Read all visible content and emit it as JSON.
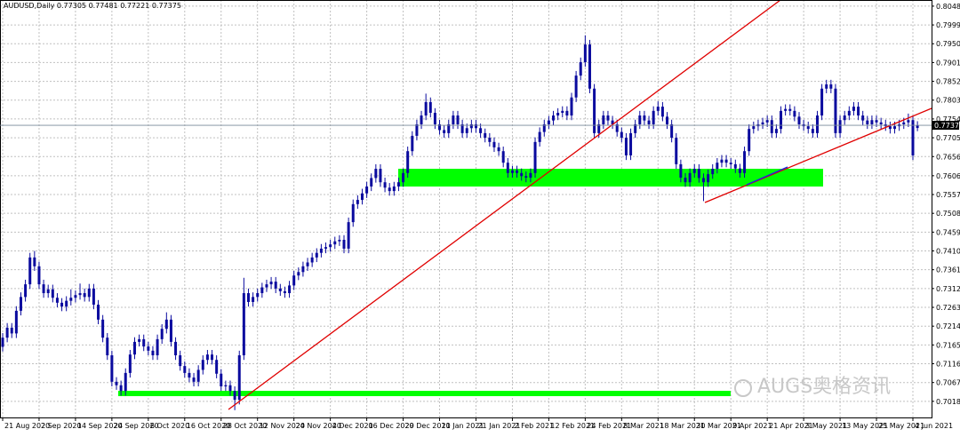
{
  "chart_data": {
    "type": "candlestick",
    "title": "AUDUSD,Daily",
    "color": "#0a0a9e",
    "grid": true,
    "watermark": "AUGS奥格资讯",
    "categories": [
      "21 Aug 2020",
      null,
      null,
      null,
      null,
      null,
      null,
      null,
      "2 Sep 2020",
      null,
      null,
      null,
      null,
      null,
      null,
      null,
      "14 Sep 2020",
      null,
      null,
      null,
      null,
      null,
      null,
      null,
      "24 Sep 2020",
      null,
      null,
      null,
      null,
      null,
      null,
      null,
      "6 Oct 2020",
      null,
      null,
      null,
      null,
      null,
      null,
      null,
      "16 Oct 2020",
      null,
      null,
      null,
      null,
      null,
      null,
      null,
      "28 Oct 2020",
      null,
      null,
      null,
      null,
      null,
      null,
      null,
      "12 Nov 2020",
      null,
      null,
      null,
      null,
      null,
      null,
      null,
      "24 Nov 2020",
      null,
      null,
      null,
      null,
      null,
      null,
      null,
      "4 Dec 2020",
      null,
      null,
      null,
      null,
      null,
      null,
      null,
      "16 Dec 2020",
      null,
      null,
      null,
      null,
      null,
      null,
      null,
      "29 Dec 2020",
      null,
      null,
      null,
      null,
      null,
      null,
      null,
      "11 Jan 2021",
      null,
      null,
      null,
      null,
      null,
      null,
      null,
      "21 Jan 2021",
      null,
      null,
      null,
      null,
      null,
      null,
      null,
      "2 Feb 2021",
      null,
      null,
      null,
      null,
      null,
      null,
      null,
      "12 Feb 2021",
      null,
      null,
      null,
      null,
      null,
      null,
      null,
      "24 Feb 2021",
      null,
      null,
      null,
      null,
      null,
      null,
      null,
      "8 Mar 2021",
      null,
      null,
      null,
      null,
      null,
      null,
      null,
      "18 Mar 2021",
      null,
      null,
      null,
      null,
      null,
      null,
      null,
      "30 Mar 2021",
      null,
      null,
      null,
      null,
      null,
      null,
      null,
      "9 Apr 2021",
      null,
      null,
      null,
      null,
      null,
      null,
      null,
      "21 Apr 2021",
      null,
      null,
      null,
      null,
      null,
      null,
      null,
      "3 May 2021",
      null,
      null,
      null,
      null,
      null,
      null,
      null,
      "13 May 2021",
      null,
      null,
      null,
      null,
      null,
      null,
      null,
      "25 May 2021",
      null,
      null,
      null,
      null,
      null,
      null,
      null,
      "4 Jun 2021",
      null
    ],
    "open": [
      0.716,
      0.7184,
      0.721,
      0.7195,
      0.7254,
      0.729,
      0.7323,
      0.7393,
      0.737,
      0.7323,
      0.73,
      0.731,
      0.7288,
      0.7275,
      0.7265,
      0.728,
      0.7288,
      0.7295,
      0.73,
      0.729,
      0.7312,
      0.727,
      0.7231,
      0.7184,
      0.7138,
      0.7069,
      0.706,
      0.7045,
      0.7092,
      0.714,
      0.7173,
      0.718,
      0.7161,
      0.715,
      0.7138,
      0.718,
      0.7207,
      0.7231,
      0.7173,
      0.7138,
      0.711,
      0.7092,
      0.708,
      0.7069,
      0.71,
      0.7126,
      0.714,
      0.7126,
      0.709,
      0.7057,
      0.706,
      0.7045,
      0.7022,
      0.7138,
      0.73,
      0.7277,
      0.729,
      0.73,
      0.7315,
      0.7323,
      0.733,
      0.7312,
      0.7305,
      0.73,
      0.732,
      0.7346,
      0.7355,
      0.737,
      0.738,
      0.7393,
      0.7405,
      0.7416,
      0.742,
      0.7427,
      0.7435,
      0.7439,
      0.7416,
      0.7485,
      0.7532,
      0.7543,
      0.756,
      0.7578,
      0.76,
      0.7624,
      0.7589,
      0.7575,
      0.7566,
      0.7578,
      0.7589,
      0.7613,
      0.767,
      0.771,
      0.774,
      0.7763,
      0.7798,
      0.777,
      0.774,
      0.7725,
      0.7717,
      0.774,
      0.7763,
      0.774,
      0.7717,
      0.773,
      0.774,
      0.773,
      0.7717,
      0.7705,
      0.7694,
      0.768,
      0.767,
      0.764,
      0.7613,
      0.762,
      0.7613,
      0.7605,
      0.7601,
      0.7613,
      0.7694,
      0.772,
      0.774,
      0.775,
      0.7763,
      0.777,
      0.7775,
      0.7763,
      0.781,
      0.7867,
      0.7902,
      0.7948,
      0.7833,
      0.7717,
      0.774,
      0.7763,
      0.775,
      0.774,
      0.772,
      0.7705,
      0.7659,
      0.7717,
      0.774,
      0.7763,
      0.775,
      0.774,
      0.7775,
      0.7786,
      0.776,
      0.774,
      0.7705,
      0.7636,
      0.7601,
      0.7589,
      0.7613,
      0.7624,
      0.76,
      0.7589,
      0.761,
      0.7624,
      0.764,
      0.7648,
      0.764,
      0.7636,
      0.7625,
      0.7613,
      0.767,
      0.7728,
      0.7735,
      0.774,
      0.7745,
      0.7751,
      0.7717,
      0.7728,
      0.7775,
      0.778,
      0.7775,
      0.776,
      0.774,
      0.7735,
      0.7728,
      0.7717,
      0.7763,
      0.7833,
      0.7844,
      0.7833,
      0.7717,
      0.7751,
      0.7763,
      0.7775,
      0.7786,
      0.7763,
      0.775,
      0.774,
      0.7751,
      0.7745,
      0.774,
      0.7735,
      0.7728,
      0.7735,
      0.774,
      0.7745,
      0.7751,
      0.77305
    ],
    "high": [
      0.7196,
      0.7222,
      0.7222,
      0.7266,
      0.7302,
      0.7335,
      0.7405,
      0.741,
      0.7382,
      0.7335,
      0.7322,
      0.7322,
      0.73,
      0.7287,
      0.7292,
      0.731,
      0.7307,
      0.7325,
      0.7312,
      0.7324,
      0.7324,
      0.7282,
      0.7243,
      0.7196,
      0.715,
      0.7081,
      0.7072,
      0.7104,
      0.7152,
      0.7185,
      0.7192,
      0.7192,
      0.7173,
      0.7162,
      0.7192,
      0.7219,
      0.725,
      0.7243,
      0.7185,
      0.715,
      0.7122,
      0.7104,
      0.7092,
      0.7112,
      0.7138,
      0.7152,
      0.7152,
      0.7138,
      0.7102,
      0.7072,
      0.7072,
      0.7057,
      0.715,
      0.734,
      0.7312,
      0.7302,
      0.7312,
      0.7327,
      0.7335,
      0.7342,
      0.7342,
      0.7324,
      0.7317,
      0.7332,
      0.7358,
      0.7367,
      0.7382,
      0.7392,
      0.7405,
      0.7417,
      0.7428,
      0.7432,
      0.7439,
      0.7447,
      0.7451,
      0.7451,
      0.7497,
      0.7544,
      0.7555,
      0.7572,
      0.759,
      0.7612,
      0.7636,
      0.7636,
      0.7601,
      0.7587,
      0.759,
      0.7601,
      0.7625,
      0.7682,
      0.7722,
      0.7752,
      0.7775,
      0.782,
      0.781,
      0.7782,
      0.7752,
      0.7737,
      0.7752,
      0.7775,
      0.7775,
      0.7752,
      0.7742,
      0.7752,
      0.7752,
      0.7742,
      0.7729,
      0.7717,
      0.7706,
      0.7692,
      0.7682,
      0.7652,
      0.7632,
      0.7632,
      0.7625,
      0.7617,
      0.7625,
      0.7706,
      0.7732,
      0.7752,
      0.7762,
      0.7775,
      0.7782,
      0.7787,
      0.7787,
      0.7822,
      0.7879,
      0.7914,
      0.7972,
      0.796,
      0.7845,
      0.7752,
      0.7775,
      0.7775,
      0.7762,
      0.7752,
      0.7732,
      0.7717,
      0.7729,
      0.7752,
      0.7775,
      0.7775,
      0.7762,
      0.7787,
      0.78,
      0.7798,
      0.7772,
      0.7752,
      0.7717,
      0.7648,
      0.7613,
      0.7625,
      0.7636,
      0.7636,
      0.7612,
      0.7622,
      0.7636,
      0.7652,
      0.766,
      0.766,
      0.7652,
      0.7648,
      0.7637,
      0.7682,
      0.774,
      0.7747,
      0.7752,
      0.7757,
      0.7763,
      0.7763,
      0.774,
      0.7787,
      0.7792,
      0.7792,
      0.7787,
      0.7772,
      0.7752,
      0.7747,
      0.774,
      0.7775,
      0.7845,
      0.7856,
      0.7856,
      0.7845,
      0.7763,
      0.7775,
      0.7787,
      0.7798,
      0.7798,
      0.7775,
      0.7762,
      0.7763,
      0.7763,
      0.7757,
      0.7752,
      0.7747,
      0.7747,
      0.7752,
      0.7757,
      0.7768,
      0.7763,
      0.77481
    ],
    "low": [
      0.7148,
      0.7172,
      0.7183,
      0.7183,
      0.7242,
      0.7278,
      0.7311,
      0.7358,
      0.7311,
      0.7288,
      0.7288,
      0.7276,
      0.7263,
      0.7253,
      0.7253,
      0.7268,
      0.7276,
      0.7283,
      0.7278,
      0.7278,
      0.7258,
      0.7219,
      0.7172,
      0.7126,
      0.7057,
      0.7048,
      0.7033,
      0.7033,
      0.708,
      0.7128,
      0.7161,
      0.7149,
      0.7138,
      0.7126,
      0.7126,
      0.7168,
      0.7195,
      0.7161,
      0.7126,
      0.7098,
      0.708,
      0.7068,
      0.7057,
      0.7057,
      0.7088,
      0.7114,
      0.7114,
      0.7078,
      0.7045,
      0.7045,
      0.7033,
      0.6995,
      0.701,
      0.7126,
      0.7265,
      0.7265,
      0.7278,
      0.7288,
      0.7303,
      0.7311,
      0.73,
      0.7293,
      0.7288,
      0.7288,
      0.7308,
      0.7334,
      0.7343,
      0.7358,
      0.7368,
      0.7381,
      0.7393,
      0.7404,
      0.7408,
      0.7415,
      0.7423,
      0.7404,
      0.7404,
      0.7473,
      0.752,
      0.7531,
      0.7548,
      0.7566,
      0.7588,
      0.7577,
      0.7563,
      0.7554,
      0.7554,
      0.7566,
      0.7577,
      0.7601,
      0.7658,
      0.7698,
      0.7728,
      0.7751,
      0.7758,
      0.7728,
      0.7713,
      0.7705,
      0.7705,
      0.7728,
      0.7728,
      0.7705,
      0.7705,
      0.7718,
      0.7718,
      0.7705,
      0.7693,
      0.7682,
      0.7668,
      0.7658,
      0.7628,
      0.7601,
      0.7601,
      0.7601,
      0.7593,
      0.7589,
      0.7589,
      0.7601,
      0.7682,
      0.7708,
      0.7728,
      0.7738,
      0.7751,
      0.7758,
      0.7751,
      0.7751,
      0.7798,
      0.7855,
      0.789,
      0.7821,
      0.7705,
      0.7705,
      0.7728,
      0.7738,
      0.7728,
      0.7708,
      0.7693,
      0.7647,
      0.7647,
      0.7705,
      0.7728,
      0.7738,
      0.7728,
      0.7728,
      0.7763,
      0.7748,
      0.7728,
      0.7693,
      0.7624,
      0.7589,
      0.7577,
      0.7577,
      0.7601,
      0.7588,
      0.754,
      0.7577,
      0.7598,
      0.7612,
      0.7628,
      0.7628,
      0.7624,
      0.7613,
      0.7601,
      0.7601,
      0.7658,
      0.7716,
      0.7723,
      0.7728,
      0.7733,
      0.7705,
      0.7705,
      0.7716,
      0.7763,
      0.7763,
      0.7748,
      0.7728,
      0.7723,
      0.7716,
      0.7705,
      0.7705,
      0.7751,
      0.7821,
      0.7821,
      0.7705,
      0.7705,
      0.7739,
      0.7751,
      0.7763,
      0.7751,
      0.7738,
      0.7728,
      0.7728,
      0.7733,
      0.7728,
      0.7723,
      0.7716,
      0.7716,
      0.7723,
      0.7728,
      0.7733,
      0.7647,
      0.77221
    ],
    "close": [
      0.7184,
      0.721,
      0.7195,
      0.7254,
      0.729,
      0.7323,
      0.7393,
      0.737,
      0.7323,
      0.73,
      0.731,
      0.7288,
      0.7275,
      0.7265,
      0.728,
      0.7288,
      0.7295,
      0.73,
      0.729,
      0.7312,
      0.727,
      0.7231,
      0.7184,
      0.7138,
      0.7069,
      0.706,
      0.7045,
      0.7092,
      0.714,
      0.7173,
      0.718,
      0.7161,
      0.715,
      0.7138,
      0.718,
      0.7207,
      0.7231,
      0.7173,
      0.7138,
      0.711,
      0.7092,
      0.708,
      0.7069,
      0.71,
      0.7126,
      0.714,
      0.7126,
      0.709,
      0.7057,
      0.706,
      0.7045,
      0.7022,
      0.7138,
      0.73,
      0.7277,
      0.729,
      0.73,
      0.7315,
      0.7323,
      0.733,
      0.7312,
      0.7305,
      0.73,
      0.732,
      0.7346,
      0.7355,
      0.737,
      0.738,
      0.7393,
      0.7405,
      0.7416,
      0.742,
      0.7427,
      0.7435,
      0.7439,
      0.7416,
      0.7485,
      0.7532,
      0.7543,
      0.756,
      0.7578,
      0.76,
      0.7624,
      0.7589,
      0.7575,
      0.7566,
      0.7578,
      0.7589,
      0.7613,
      0.767,
      0.771,
      0.774,
      0.7763,
      0.7798,
      0.777,
      0.774,
      0.7725,
      0.7717,
      0.774,
      0.7763,
      0.774,
      0.7717,
      0.773,
      0.774,
      0.773,
      0.7717,
      0.7705,
      0.7694,
      0.768,
      0.767,
      0.764,
      0.7613,
      0.762,
      0.7613,
      0.7605,
      0.7601,
      0.7613,
      0.7694,
      0.772,
      0.774,
      0.775,
      0.7763,
      0.777,
      0.7775,
      0.7763,
      0.781,
      0.7867,
      0.7902,
      0.7948,
      0.7833,
      0.7717,
      0.774,
      0.7763,
      0.775,
      0.774,
      0.772,
      0.7705,
      0.7659,
      0.7717,
      0.774,
      0.7763,
      0.775,
      0.774,
      0.7775,
      0.7786,
      0.776,
      0.774,
      0.7705,
      0.7636,
      0.7601,
      0.7589,
      0.7613,
      0.7624,
      0.76,
      0.7589,
      0.761,
      0.7624,
      0.764,
      0.7648,
      0.764,
      0.7636,
      0.7625,
      0.7613,
      0.767,
      0.7728,
      0.7735,
      0.774,
      0.7745,
      0.7751,
      0.7717,
      0.7728,
      0.7775,
      0.778,
      0.7775,
      0.776,
      0.774,
      0.7735,
      0.7728,
      0.7717,
      0.7763,
      0.7833,
      0.7844,
      0.7833,
      0.7717,
      0.7751,
      0.7763,
      0.7775,
      0.7786,
      0.7763,
      0.775,
      0.774,
      0.7751,
      0.7745,
      0.774,
      0.7735,
      0.7728,
      0.7735,
      0.774,
      0.7745,
      0.7751,
      0.7659,
      0.77375
    ],
    "ylim": [
      0.6976,
      0.8064
    ],
    "yticks": [
      {
        "value": 0.8048,
        "label": "0.80480"
      },
      {
        "value": 0.7999,
        "label": "0.79990"
      },
      {
        "value": 0.795,
        "label": "0.79500"
      },
      {
        "value": 0.7901,
        "label": "0.79010"
      },
      {
        "value": 0.7852,
        "label": "0.78520"
      },
      {
        "value": 0.7803,
        "label": "0.78030"
      },
      {
        "value": 0.7754,
        "label": "0.77540"
      },
      {
        "value": 0.7705,
        "label": "0.77050"
      },
      {
        "value": 0.7656,
        "label": "0.76560"
      },
      {
        "value": 0.7606,
        "label": "0.76060"
      },
      {
        "value": 0.7557,
        "label": "0.75570"
      },
      {
        "value": 0.7508,
        "label": "0.75080"
      },
      {
        "value": 0.7459,
        "label": "0.74590"
      },
      {
        "value": 0.741,
        "label": "0.74100"
      },
      {
        "value": 0.7361,
        "label": "0.73610"
      },
      {
        "value": 0.7312,
        "label": "0.73120"
      },
      {
        "value": 0.7263,
        "label": "0.72630"
      },
      {
        "value": 0.7214,
        "label": "0.72140"
      },
      {
        "value": 0.7165,
        "label": "0.71650"
      },
      {
        "value": 0.7116,
        "label": "0.71160"
      },
      {
        "value": 0.7067,
        "label": "0.70670"
      },
      {
        "value": 0.7018,
        "label": "0.70180"
      }
    ]
  }
}
